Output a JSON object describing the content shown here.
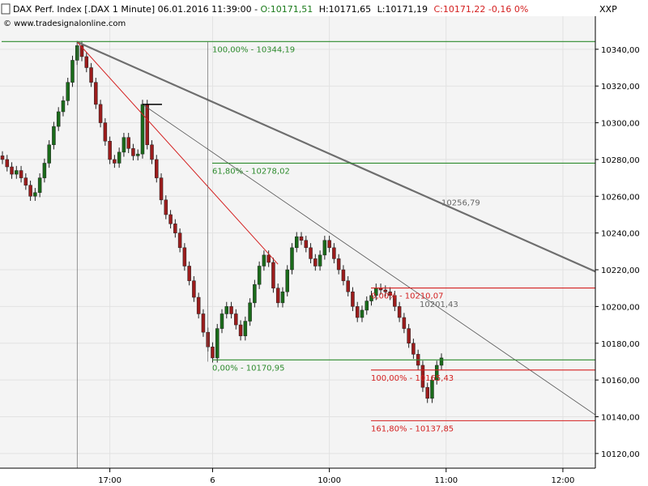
{
  "header": {
    "instrument": "DAX Perf. Index [.DAX  1 Minute] 06.01.2016 11:39:00 - ",
    "open": "O:10171,51",
    "high": "H:10171,65",
    "low": "L:10171,19",
    "close_label": "C:10171,22 -0,16 0%",
    "exchange": "XXP",
    "website": "© www.tradesignalonline.com"
  },
  "colors": {
    "plot_bg": "#f4f4f4",
    "grid": "#e2e2e2",
    "candle_up": "#1a6b1a",
    "candle_down": "#9b1c1c",
    "green_level": "#2e8b2e",
    "red_level": "#d42020",
    "trend_gray": "#6e6e6e"
  },
  "chart_data": {
    "type": "candlestick",
    "y_axis": {
      "range": [
        10112,
        10358
      ],
      "ticks": [
        "10120,00",
        "10140,00",
        "10160,00",
        "10180,00",
        "10200,00",
        "10220,00",
        "10240,00",
        "10260,00",
        "10280,00",
        "10300,00",
        "10320,00",
        "10340,00"
      ],
      "tick_values": [
        10120,
        10140,
        10160,
        10180,
        10200,
        10220,
        10240,
        10260,
        10280,
        10300,
        10320,
        10340
      ]
    },
    "x_axis": {
      "labels": [
        "17:00",
        "6",
        "10:00",
        "11:00",
        "12:00"
      ],
      "label_index": [
        23,
        45,
        70,
        95,
        120
      ]
    },
    "close_series": [
      10280,
      10276,
      10272,
      10274,
      10270,
      10266,
      10260,
      10262,
      10270,
      10278,
      10288,
      10298,
      10306,
      10312,
      10322,
      10334,
      10342,
      10336,
      10330,
      10322,
      10310,
      10300,
      10290,
      10280,
      10278,
      10284,
      10292,
      10286,
      10282,
      10283,
      10310,
      10288,
      10280,
      10270,
      10258,
      10250,
      10245,
      10240,
      10232,
      10222,
      10214,
      10205,
      10196,
      10186,
      10178,
      10172,
      10188,
      10196,
      10200,
      10196,
      10190,
      10184,
      10192,
      10202,
      10212,
      10222,
      10228,
      10224,
      10210,
      10202,
      10208,
      10220,
      10232,
      10238,
      10236,
      10232,
      10226,
      10222,
      10228,
      10236,
      10232,
      10226,
      10220,
      10214,
      10208,
      10200,
      10194,
      10198,
      10203,
      10206,
      10210,
      10209,
      10208,
      10206,
      10200,
      10194,
      10188,
      10180,
      10174,
      10168,
      10156,
      10150,
      10160,
      10168,
      10172
    ],
    "levels": [
      {
        "label": "100,00% - 10344,19",
        "value": 10344.19,
        "color": "green"
      },
      {
        "label": "61,80% - 10278,02",
        "value": 10278.02,
        "color": "green"
      },
      {
        "label": "0,00% - 10170,95",
        "value": 10170.95,
        "color": "green"
      },
      {
        "label": "0,00% - 10210,07",
        "value": 10210.07,
        "color": "red"
      },
      {
        "label": "100,00% - 10165,43",
        "value": 10165.43,
        "color": "red"
      },
      {
        "label": "161,80% - 10137,85",
        "value": 10137.85,
        "color": "red"
      }
    ],
    "trendline_labels": [
      {
        "label": "10256,79",
        "value": 10256.79
      },
      {
        "label": "10201,43",
        "value": 10201.43
      }
    ]
  }
}
